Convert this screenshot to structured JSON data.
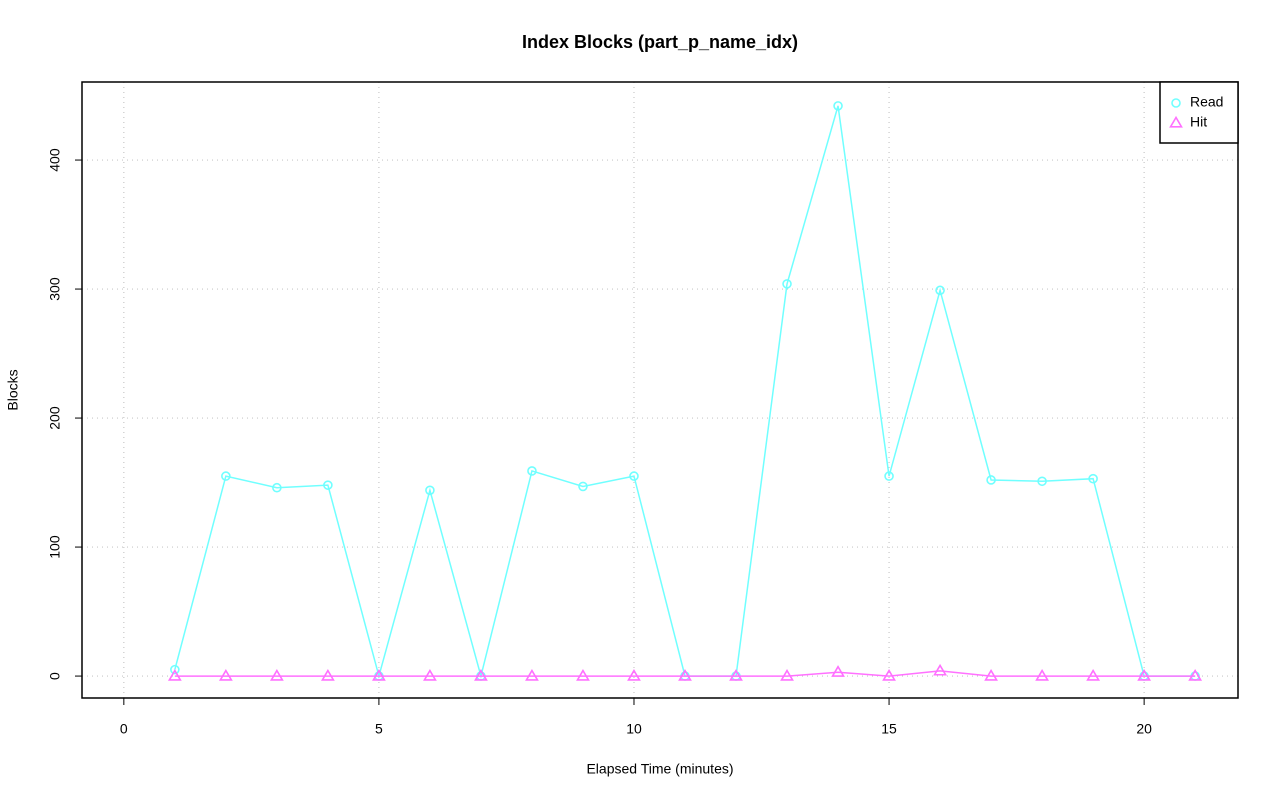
{
  "chart_data": {
    "type": "line",
    "title": "Index Blocks (part_p_name_idx)",
    "x_label": "Elapsed Time (minutes)",
    "y_label": "Blocks",
    "x": [
      1,
      2,
      3,
      4,
      5,
      6,
      7,
      8,
      9,
      10,
      11,
      12,
      13,
      14,
      15,
      16,
      17,
      18,
      19,
      20,
      21
    ],
    "series": [
      {
        "name": "Read",
        "color": "#70ffff",
        "marker": "circle",
        "values": [
          5,
          155,
          146,
          148,
          0,
          144,
          0,
          159,
          147,
          155,
          0,
          0,
          304,
          442,
          155,
          299,
          152,
          151,
          153,
          0,
          0
        ]
      },
      {
        "name": "Hit",
        "color": "#ff70ff",
        "marker": "triangle",
        "values": [
          0,
          0,
          0,
          0,
          0,
          0,
          0,
          0,
          0,
          0,
          0,
          0,
          0,
          3,
          0,
          4,
          0,
          0,
          0,
          0,
          0
        ]
      }
    ],
    "xlim": [
      -0.82,
      21.84
    ],
    "ylim": [
      -17,
      460.5
    ],
    "xticks": [
      0,
      5,
      10,
      15,
      20
    ],
    "yticks": [
      0,
      100,
      200,
      300,
      400
    ],
    "grid": true,
    "legend": "topright"
  }
}
